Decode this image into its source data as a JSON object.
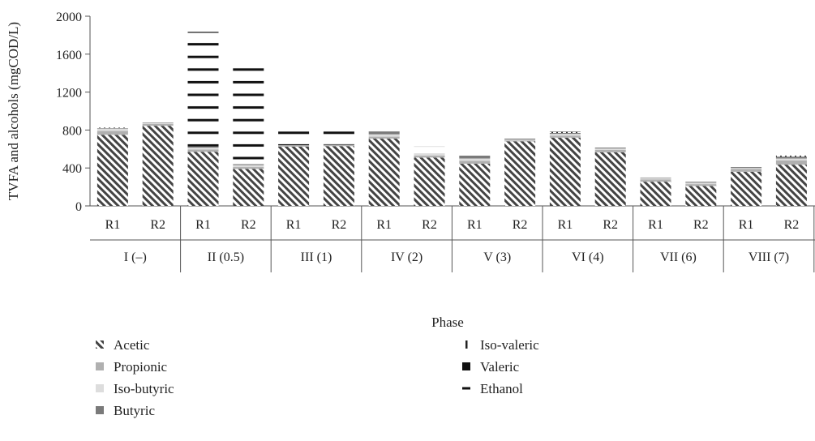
{
  "chart_data": {
    "type": "bar",
    "stacked": true,
    "xlabel": "Phase",
    "ylabel": "TVFA and alcohols (mgCOD/L)",
    "ylim": [
      0,
      2000
    ],
    "yticks": [
      0,
      400,
      800,
      1200,
      1600,
      2000
    ],
    "grid": false,
    "legend_position": "bottom",
    "phases": [
      "I (–)",
      "II (0.5)",
      "III (1)",
      "IV (2)",
      "V (3)",
      "VI (4)",
      "VII (6)",
      "VIII (7)"
    ],
    "categories": [
      "R1",
      "R2",
      "R1",
      "R2",
      "R1",
      "R2",
      "R1",
      "R2",
      "R1",
      "R2",
      "R1",
      "R2",
      "R1",
      "R2",
      "R1",
      "R2"
    ],
    "series": [
      {
        "name": "Acetic",
        "color": "#444444",
        "pattern": "diagonal-hatch",
        "values": [
          750,
          845,
          570,
          390,
          625,
          630,
          710,
          510,
          445,
          680,
          720,
          565,
          255,
          210,
          360,
          435
        ]
      },
      {
        "name": "Propionic",
        "color": "#b0b0b0",
        "pattern": "solid",
        "values": [
          40,
          20,
          25,
          20,
          15,
          15,
          20,
          20,
          30,
          10,
          20,
          25,
          25,
          20,
          30,
          45
        ]
      },
      {
        "name": "Iso-butyric",
        "color": "#dddddd",
        "pattern": "solid",
        "values": [
          25,
          10,
          20,
          20,
          0,
          0,
          25,
          25,
          25,
          10,
          20,
          15,
          15,
          15,
          10,
          20
        ]
      },
      {
        "name": "Butyric",
        "color": "#7a7a7a",
        "pattern": "solid",
        "values": [
          5,
          5,
          10,
          10,
          0,
          0,
          30,
          0,
          30,
          10,
          10,
          10,
          5,
          10,
          10,
          20
        ]
      },
      {
        "name": "Iso-valeric",
        "color": "#222222",
        "pattern": "vertical-dash",
        "values": [
          5,
          0,
          0,
          0,
          0,
          0,
          0,
          0,
          0,
          0,
          10,
          0,
          0,
          0,
          0,
          10
        ]
      },
      {
        "name": "Valeric",
        "color": "#111111",
        "pattern": "solid",
        "values": [
          0,
          0,
          0,
          0,
          0,
          0,
          0,
          0,
          0,
          0,
          0,
          0,
          0,
          0,
          0,
          0
        ]
      },
      {
        "name": "Ethanol",
        "color": "#111111",
        "pattern": "horizontal-dash",
        "values": [
          10,
          5,
          1210,
          1110,
          200,
          195,
          5,
          70,
          10,
          5,
          5,
          5,
          5,
          5,
          5,
          10
        ]
      }
    ]
  }
}
